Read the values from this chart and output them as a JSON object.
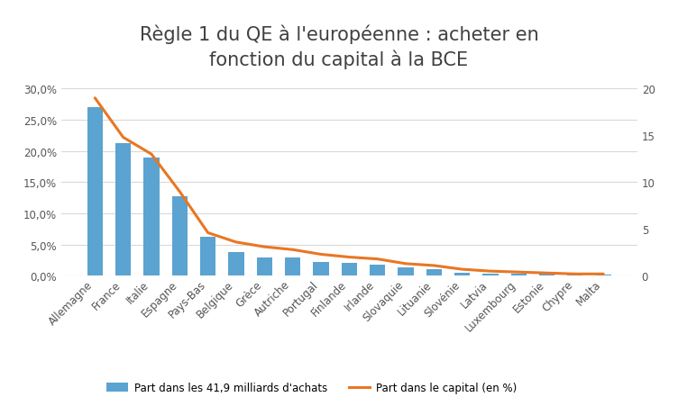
{
  "title": "Règle 1 du QE à l'européenne : acheter en\nfonction du capital à la BCE",
  "categories": [
    "Allemagne",
    "France",
    "Italie",
    "Espagne",
    "Pays-Bas",
    "Belgique",
    "Grèce",
    "Autriche",
    "Portugal",
    "Finlande",
    "Irlande",
    "Slovaquie",
    "Lituanie",
    "Slovénie",
    "Latvia",
    "Luxembourg",
    "Estonie",
    "Chypre",
    "Malta"
  ],
  "bar_values": [
    0.27,
    0.212,
    0.19,
    0.128,
    0.063,
    0.038,
    0.03,
    0.03,
    0.022,
    0.02,
    0.018,
    0.013,
    0.01,
    0.005,
    0.004,
    0.004,
    0.003,
    0.003,
    0.002
  ],
  "line_values": [
    19.0,
    14.8,
    13.0,
    9.0,
    4.6,
    3.6,
    3.1,
    2.8,
    2.3,
    2.0,
    1.8,
    1.3,
    1.1,
    0.7,
    0.5,
    0.4,
    0.3,
    0.2,
    0.2
  ],
  "bar_color": "#5BA3D0",
  "line_color": "#E87722",
  "ylim_left": [
    0.0,
    0.3
  ],
  "ylim_right": [
    0,
    20
  ],
  "yticks_left": [
    0.0,
    0.05,
    0.1,
    0.15,
    0.2,
    0.25,
    0.3
  ],
  "ytick_labels_left": [
    "0,0%",
    "5,0%",
    "10,0%",
    "15,0%",
    "20,0%",
    "25,0%",
    "30,0%"
  ],
  "yticks_right": [
    0,
    5,
    10,
    15,
    20
  ],
  "legend_bar_label": "Part dans les 41,9 milliards d'achats",
  "legend_line_label": "Part dans le capital (en %)",
  "bg_color": "#FFFFFF",
  "grid_color": "#D9D9D9",
  "title_fontsize": 15,
  "tick_fontsize": 8.5,
  "bar_width": 0.55
}
